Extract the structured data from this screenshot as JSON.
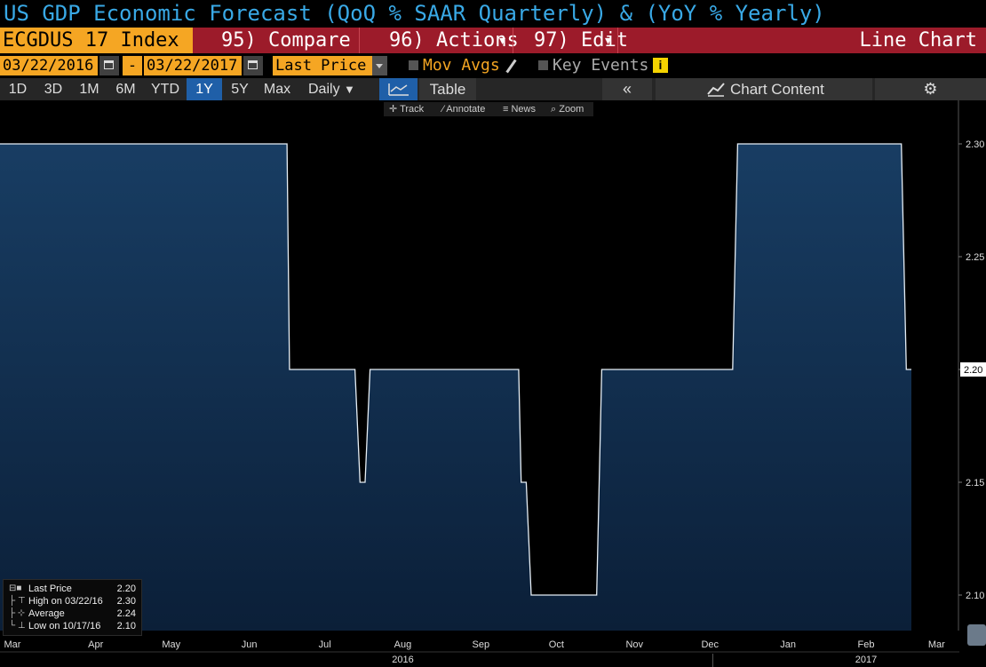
{
  "header": {
    "title": "US GDP Economic Forecast (QoQ % SAAR Quarterly) & (YoY % Yearly)"
  },
  "command_bar": {
    "ticker": "ECGDUS 17 Index",
    "compare_label": "95) Compare",
    "actions_label": "96) Actions",
    "edit_label": "97) Edit",
    "chart_type_label": "Line Chart"
  },
  "params": {
    "start_date": "03/22/2016",
    "dash": "-",
    "end_date": "03/22/2017",
    "field": "Last Price",
    "mov_avgs_label": "Mov Avgs",
    "key_events_label": "Key Events",
    "info_label": "i"
  },
  "periods": {
    "items": [
      {
        "label": "1D",
        "active": false
      },
      {
        "label": "3D",
        "active": false
      },
      {
        "label": "1M",
        "active": false
      },
      {
        "label": "6M",
        "active": false
      },
      {
        "label": "YTD",
        "active": false
      },
      {
        "label": "1Y",
        "active": true
      },
      {
        "label": "5Y",
        "active": false
      },
      {
        "label": "Max",
        "active": false
      }
    ],
    "frequency": "Daily",
    "table_label": "Table",
    "collapse_label": "«",
    "chart_content_label": "Chart Content"
  },
  "tools": {
    "track": "Track",
    "annotate": "Annotate",
    "news": "News",
    "zoom": "Zoom"
  },
  "legend": {
    "last_price_label": "Last Price",
    "last_price_value": "2.20",
    "high_label": "High on 03/22/16",
    "high_value": "2.30",
    "average_label": "Average",
    "average_value": "2.24",
    "low_label": "Low on 10/17/16",
    "low_value": "2.10"
  },
  "colors": {
    "area_top": "#183d63",
    "area_bottom": "#0b1f38",
    "line": "#e6eef5",
    "title": "#39a9e6",
    "accent": "#f5a623",
    "bar": "#9c1b2a"
  },
  "chart_data": {
    "type": "area",
    "title": "US GDP Economic Forecast (QoQ % SAAR Quarterly) & (YoY % Yearly)",
    "ylim": [
      2.075,
      2.325
    ],
    "y_ticks": [
      "2.30",
      "2.25",
      "2.20",
      "2.15",
      "2.10"
    ],
    "x_month_labels": [
      "Mar",
      "Apr",
      "May",
      "Jun",
      "Jul",
      "Aug",
      "Sep",
      "Oct",
      "Nov",
      "Dec",
      "Jan",
      "Feb",
      "Mar"
    ],
    "x_year_labels": [
      "2016",
      "2017"
    ],
    "last_value_label": "2.20",
    "series": [
      {
        "name": "Last Price",
        "points": [
          [
            "2016-03-22",
            2.3
          ],
          [
            "2016-06-30",
            2.3
          ],
          [
            "2016-07-01",
            2.2
          ],
          [
            "2016-07-27",
            2.2
          ],
          [
            "2016-07-29",
            2.15
          ],
          [
            "2016-07-31",
            2.15
          ],
          [
            "2016-08-02",
            2.2
          ],
          [
            "2016-09-30",
            2.2
          ],
          [
            "2016-10-01",
            2.15
          ],
          [
            "2016-10-03",
            2.15
          ],
          [
            "2016-10-05",
            2.1
          ],
          [
            "2016-10-31",
            2.1
          ],
          [
            "2016-11-02",
            2.2
          ],
          [
            "2016-12-24",
            2.2
          ],
          [
            "2016-12-26",
            2.3
          ],
          [
            "2017-03-01",
            2.3
          ],
          [
            "2017-03-03",
            2.2
          ],
          [
            "2017-03-05",
            2.2
          ]
        ]
      }
    ]
  }
}
